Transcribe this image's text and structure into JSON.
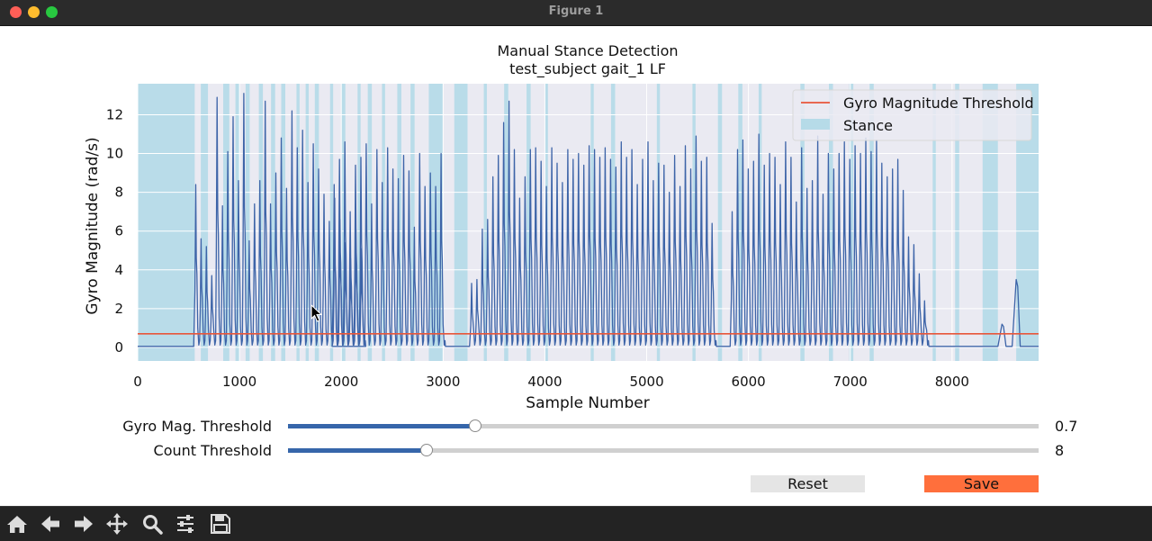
{
  "window": {
    "title": "Figure 1"
  },
  "colors": {
    "plot_background": "#eaeaf2",
    "stance": "#add8e6",
    "signal": "#3d64a8",
    "threshold": "#e8563a",
    "slider_fill": "#3666aa",
    "save_button": "#ff6f3c",
    "reset_button": "#e5e5e5"
  },
  "chart_data": {
    "type": "line",
    "title": "Manual Stance Detection",
    "subtitle": "test_subject  gait_1  LF",
    "xlabel": "Sample Number",
    "ylabel": "Gyro Magnitude (rad/s)",
    "xlim": [
      0,
      8850
    ],
    "ylim": [
      -0.7,
      13.6
    ],
    "xticks": [
      0,
      1000,
      2000,
      3000,
      4000,
      5000,
      6000,
      7000,
      8000
    ],
    "xtick_labels": [
      "0",
      "1000",
      "2000",
      "3000",
      "4000",
      "5000",
      "6000",
      "7000",
      "8000"
    ],
    "yticks": [
      0,
      2,
      4,
      6,
      8,
      10,
      12
    ],
    "ytick_labels": [
      "0",
      "2",
      "4",
      "6",
      "8",
      "10",
      "12"
    ],
    "grid": true,
    "legend": {
      "position": "top-right",
      "entries": [
        {
          "label": "Gyro Magnitude Threshold",
          "kind": "line"
        },
        {
          "label": "Stance",
          "kind": "patch"
        }
      ]
    },
    "threshold": 0.7,
    "baseline": 0.05,
    "stance_regions": [
      [
        0,
        560
      ],
      [
        620,
        690
      ],
      [
        840,
        900
      ],
      [
        960,
        1000
      ],
      [
        1060,
        1100
      ],
      [
        1190,
        1230
      ],
      [
        1310,
        1350
      ],
      [
        1410,
        1450
      ],
      [
        1560,
        1590
      ],
      [
        1650,
        1680
      ],
      [
        1740,
        1780
      ],
      [
        1890,
        1920
      ],
      [
        2000,
        2040
      ],
      [
        2160,
        2190
      ],
      [
        2260,
        2300
      ],
      [
        2400,
        2430
      ],
      [
        2550,
        2590
      ],
      [
        2680,
        2720
      ],
      [
        2860,
        3000
      ],
      [
        3110,
        3240
      ],
      [
        3400,
        3430
      ],
      [
        3600,
        3640
      ],
      [
        3820,
        3860
      ],
      [
        4000,
        4030
      ],
      [
        4450,
        4480
      ],
      [
        4650,
        4690
      ],
      [
        5100,
        5130
      ],
      [
        5450,
        5480
      ],
      [
        5700,
        5740
      ],
      [
        5900,
        5940
      ],
      [
        6100,
        6130
      ],
      [
        6510,
        6550
      ],
      [
        6790,
        6830
      ],
      [
        6990,
        7030
      ],
      [
        7190,
        7230
      ],
      [
        7810,
        7840
      ],
      [
        8030,
        8070
      ],
      [
        8300,
        8450
      ],
      [
        8630,
        8850
      ]
    ],
    "series": [
      {
        "name": "Gyro Magnitude",
        "segments": [
          {
            "start": 560,
            "spacing": 52.5,
            "peaks": [
              8.4,
              5.6,
              5.2,
              3.7,
              12.9,
              7.3,
              10.1,
              11.9,
              8.6,
              13.1,
              5.5,
              7.4,
              8.6,
              12.7,
              7.4,
              9.0,
              10.8,
              8.2,
              12.2,
              10.3,
              11.2,
              8.5,
              10.5,
              9.2,
              7.9,
              6.5,
              7.7,
              6.6,
              5.4,
              4.6,
              6.1,
              5.1
            ]
          },
          {
            "start": 1920,
            "spacing": 52.5,
            "peaks": [
              8.4,
              9.7,
              10.6,
              7.0,
              9.4,
              9.8,
              10.5,
              7.4,
              10.2,
              8.5,
              10.3,
              9.2,
              8.7,
              9.9,
              9.1,
              6.2,
              10.0,
              8.3,
              9.0,
              8.3,
              10.0
            ]
          },
          {
            "start": 3270,
            "spacing": 52.5,
            "peaks": [
              3.3,
              3.5,
              6.1,
              6.6,
              8.8,
              9.9,
              11.6,
              12.7,
              10.2,
              7.7,
              8.8,
              10.2,
              10.3,
              9.6,
              8.3,
              10.3,
              9.5,
              8.5,
              10.2,
              9.7,
              10.0,
              9.4,
              10.4,
              10.2,
              9.8,
              10.3,
              9.7,
              9.3,
              10.6,
              9.8,
              10.2,
              8.4,
              9.7,
              10.6,
              8.6,
              9.5,
              9.4,
              8.0,
              9.9,
              8.3,
              10.4,
              9.2,
              10.9,
              9.6,
              9.8,
              6.4
            ]
          },
          {
            "start": 5830,
            "spacing": 52.5,
            "peaks": [
              7.0,
              10.2,
              10.7,
              9.2,
              9.6,
              11.0,
              9.4,
              10.0,
              9.8,
              8.4,
              10.6,
              9.8,
              7.5,
              10.3,
              8.2,
              8.6,
              10.9,
              7.9,
              10.0,
              9.2,
              10.0,
              10.6,
              9.7,
              10.4,
              10.0,
              10.8,
              10.1,
              10.7,
              9.5,
              8.8,
              9.2,
              9.7,
              8.1,
              5.7,
              5.3,
              3.8,
              2.4
            ]
          }
        ],
        "late_bumps": [
          [
            8490,
            1.2
          ],
          [
            8630,
            3.5
          ]
        ]
      }
    ]
  },
  "sliders": [
    {
      "label": "Gyro Mag. Threshold",
      "value": "0.7",
      "fraction": 0.25
    },
    {
      "label": "Count Threshold",
      "value": "8",
      "fraction": 0.184
    }
  ],
  "buttons": {
    "reset": "Reset",
    "save": "Save"
  },
  "toolbar": [
    {
      "icon": "home-icon"
    },
    {
      "icon": "back-arrow-icon"
    },
    {
      "icon": "forward-arrow-icon"
    },
    {
      "icon": "pan-icon"
    },
    {
      "icon": "zoom-icon"
    },
    {
      "icon": "configure-subplots-icon"
    },
    {
      "icon": "save-figure-icon"
    }
  ]
}
